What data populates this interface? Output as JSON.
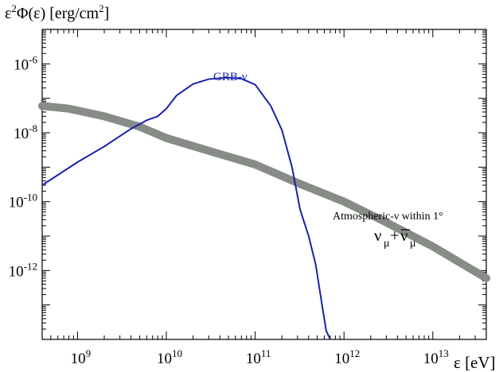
{
  "chart_data": {
    "type": "line",
    "title": "",
    "xscale": "log",
    "yscale": "log",
    "xlim": [
      400000000.0,
      40000000000000.0
    ],
    "ylim": [
      1e-14,
      1e-05
    ],
    "xlabel": "ε [eV]",
    "ylabel": "ε²Φ(ε) [erg/cm²]",
    "ylabel_parts": {
      "base": "ε",
      "base_sup": "2",
      "mid": "Φ(ε) [erg/cm",
      "mid_sup": "2",
      "end": "]"
    },
    "x_ticks": [
      {
        "value": 1000000000.0,
        "mantissa": "10",
        "exp": "9"
      },
      {
        "value": 10000000000.0,
        "mantissa": "10",
        "exp": "10"
      },
      {
        "value": 100000000000.0,
        "mantissa": "10",
        "exp": "11"
      },
      {
        "value": 1000000000000.0,
        "mantissa": "10",
        "exp": "12"
      },
      {
        "value": 10000000000000.0,
        "mantissa": "10",
        "exp": "13"
      }
    ],
    "y_ticks": [
      {
        "value": 1e-06,
        "mantissa": "10",
        "exp": "-6"
      },
      {
        "value": 1e-08,
        "mantissa": "10",
        "exp": "-8"
      },
      {
        "value": 1e-10,
        "mantissa": "10",
        "exp": "-10"
      },
      {
        "value": 1e-12,
        "mantissa": "10",
        "exp": "-12"
      }
    ],
    "series": [
      {
        "name": "GRB-ν",
        "label": "GRB-ν",
        "color": "#1a22a8",
        "style": "thin",
        "x": [
          400000000.0,
          1000000000.0,
          2000000000.0,
          4000000000.0,
          6000000000.0,
          8000000000.0,
          10000000000.0,
          13000000000.0,
          20000000000.0,
          30000000000.0,
          50000000000.0,
          70000000000.0,
          100000000000.0,
          150000000000.0,
          200000000000.0,
          260000000000.0,
          320000000000.0,
          400000000000.0,
          480000000000.0,
          560000000000.0,
          630000000000.0,
          700000000000.0
        ],
        "y": [
          3e-10,
          1.4e-09,
          4e-09,
          1.3e-08,
          2.3e-08,
          3e-08,
          5e-08,
          1.2e-07,
          2.6e-07,
          3.6e-07,
          4e-07,
          3.7e-07,
          2.5e-07,
          6e-08,
          1.2e-08,
          1e-09,
          6e-11,
          1e-11,
          1.5e-12,
          1.2e-13,
          1.8e-14,
          1e-14
        ]
      },
      {
        "name": "Atmospheric-ν within 1°",
        "label": "Atmospheric-ν within 1°",
        "sublabel_base": "ν",
        "sublabel_sub": "μ",
        "sublabel_plus": "+",
        "color": "#878c87",
        "style": "thick",
        "x": [
          400000000.0,
          800000000.0,
          2000000000.0,
          5000000000.0,
          10000000000.0,
          30000000000.0,
          100000000000.0,
          300000000000.0,
          1000000000000.0,
          3000000000000.0,
          10000000000000.0,
          40000000000000.0
        ],
        "y": [
          6e-08,
          5e-08,
          3e-08,
          1.5e-08,
          7e-09,
          3e-09,
          1.2e-09,
          3.5e-10,
          1e-10,
          2.5e-11,
          5e-12,
          6e-13
        ]
      }
    ]
  }
}
